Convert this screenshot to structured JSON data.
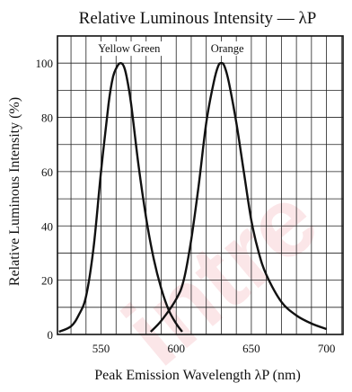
{
  "chart_data": {
    "type": "line",
    "title": "Relative Luminous Intensity — λP",
    "xlabel": "Peak Emission Wavelength λP (nm)",
    "ylabel": "Relative Luminous Intensity (%)",
    "xlim": [
      520,
      710
    ],
    "ylim": [
      0,
      110
    ],
    "x_ticks": [
      550,
      600,
      650,
      700
    ],
    "y_ticks": [
      0,
      20,
      40,
      60,
      80,
      100
    ],
    "x_tick_labels": [
      "550",
      "600",
      "650",
      "700"
    ],
    "y_tick_labels": [
      "0",
      "20",
      "40",
      "60",
      "80",
      "100"
    ],
    "grid": true,
    "series": [
      {
        "name": "Yellow Green",
        "color": "#111111",
        "x": [
          522,
          530,
          535,
          540,
          545,
          550,
          555,
          558,
          561,
          563,
          565,
          567,
          570,
          575,
          580,
          585,
          590,
          595,
          600,
          604
        ],
        "y": [
          1,
          3,
          7,
          14,
          32,
          60,
          85,
          95,
          99,
          100,
          99,
          95,
          85,
          62,
          43,
          28,
          17,
          9,
          4,
          1
        ]
      },
      {
        "name": "Orange",
        "color": "#111111",
        "x": [
          583,
          590,
          600,
          605,
          610,
          615,
          620,
          625,
          628,
          630,
          632,
          635,
          640,
          645,
          650,
          655,
          660,
          670,
          680,
          690,
          700
        ],
        "y": [
          1,
          5,
          13,
          20,
          35,
          55,
          78,
          93,
          99,
          100,
          99,
          93,
          78,
          60,
          42,
          30,
          22,
          12,
          7,
          4,
          2
        ]
      }
    ],
    "watermark": "intre"
  }
}
